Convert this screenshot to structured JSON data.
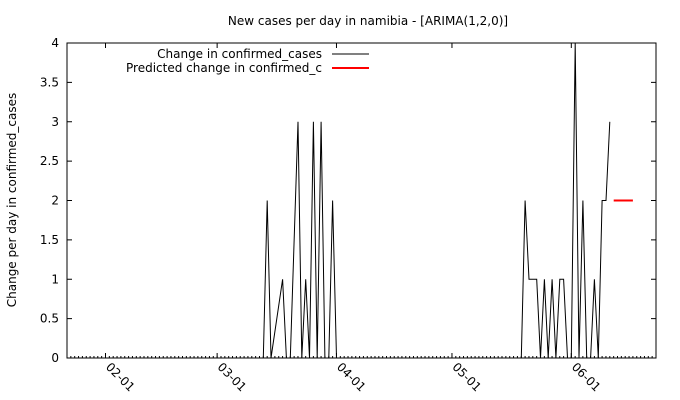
{
  "chart_data": {
    "type": "line",
    "title": "New cases per day in namibia -  [ARIMA(1,2,0)]",
    "xlabel": "",
    "ylabel": "Change per day in confirmed_cases",
    "ylim": [
      0,
      4
    ],
    "xlim": [
      "2020-01-22",
      "2020-06-23"
    ],
    "x_ticks": [
      "2020-02-01",
      "2020-03-01",
      "2020-04-01",
      "2020-05-01",
      "2020-06-01"
    ],
    "x_tick_labels": [
      "02-01",
      "03-01",
      "04-01",
      "05-01",
      "06-01"
    ],
    "y_ticks": [
      0,
      0.5,
      1,
      1.5,
      2,
      2.5,
      3,
      3.5,
      4
    ],
    "y_tick_labels": [
      "0",
      "0.5",
      "1",
      "1.5",
      "2",
      "2.5",
      "3",
      "3.5",
      "4"
    ],
    "grid": false,
    "legend_position": "top-left",
    "series": [
      {
        "name": "Change in confirmed_cases",
        "color": "#000000",
        "x": [
          "2020-01-22",
          "2020-03-13",
          "2020-03-14",
          "2020-03-15",
          "2020-03-18",
          "2020-03-19",
          "2020-03-20",
          "2020-03-22",
          "2020-03-23",
          "2020-03-24",
          "2020-03-25",
          "2020-03-26",
          "2020-03-27",
          "2020-03-28",
          "2020-03-29",
          "2020-03-30",
          "2020-03-31",
          "2020-04-01",
          "2020-04-02",
          "2020-04-03",
          "2020-04-04",
          "2020-05-19",
          "2020-05-20",
          "2020-05-21",
          "2020-05-22",
          "2020-05-23",
          "2020-05-24",
          "2020-05-25",
          "2020-05-26",
          "2020-05-27",
          "2020-05-28",
          "2020-05-29",
          "2020-05-30",
          "2020-05-31",
          "2020-06-01",
          "2020-06-02",
          "2020-06-03",
          "2020-06-04",
          "2020-06-05",
          "2020-06-06",
          "2020-06-07",
          "2020-06-08",
          "2020-06-09",
          "2020-06-10",
          "2020-06-11"
        ],
        "values": [
          0,
          0,
          2,
          0,
          1,
          0,
          0,
          3,
          0,
          1,
          0,
          3,
          0,
          3,
          0,
          0,
          2,
          0,
          0,
          0,
          0,
          0,
          2,
          1,
          1,
          1,
          0,
          1,
          0,
          1,
          0,
          1,
          1,
          0,
          0,
          4,
          0,
          2,
          0,
          0,
          1,
          0,
          2,
          2,
          3
        ]
      },
      {
        "name": "Predicted change in confirmed_c",
        "color": "#ff0000",
        "x": [
          "2020-06-12",
          "2020-06-17"
        ],
        "values": [
          2,
          2
        ]
      }
    ]
  }
}
